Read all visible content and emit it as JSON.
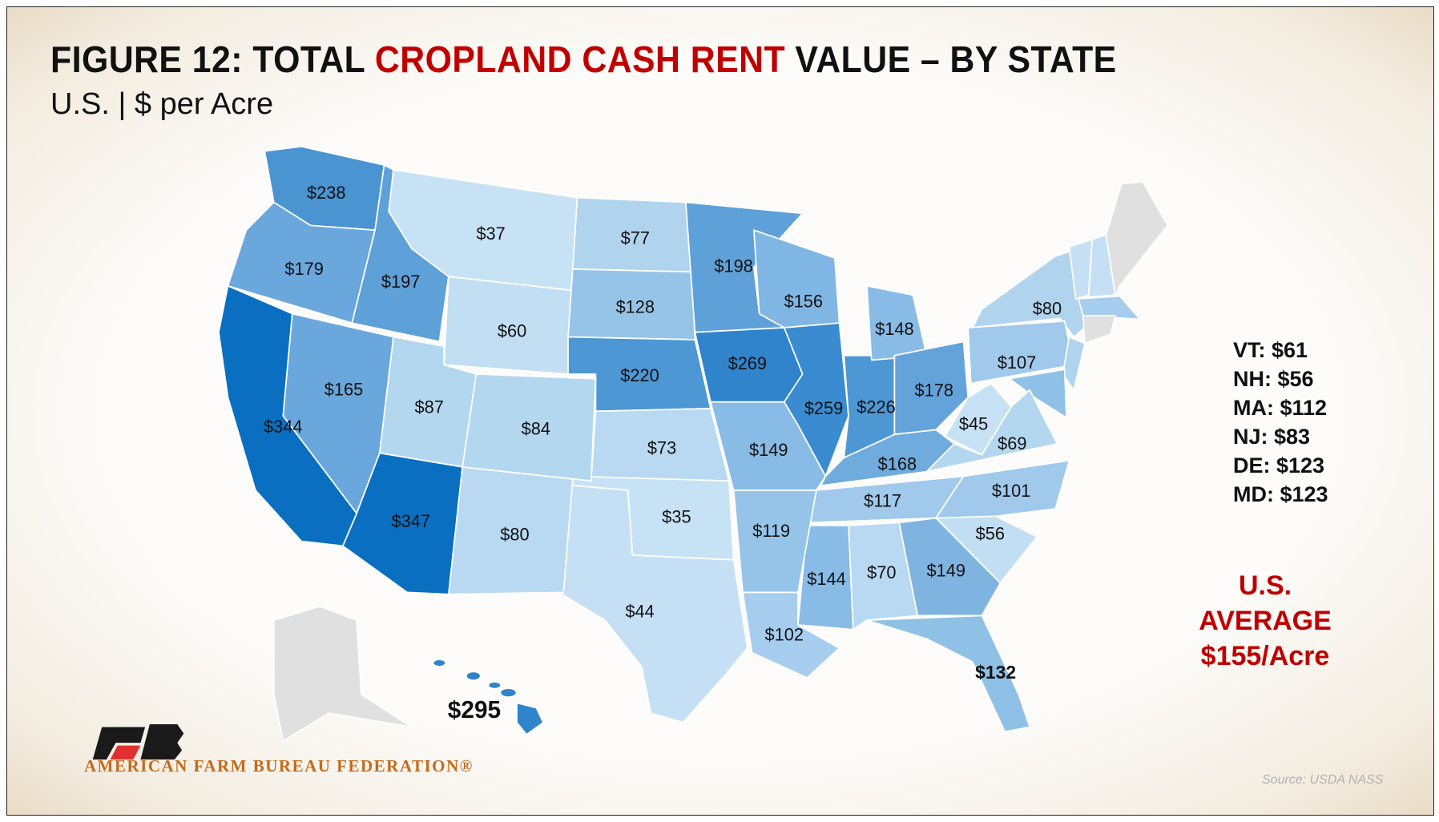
{
  "title": {
    "prefix": "FIGURE 12: TOTAL ",
    "highlight": "CROPLAND CASH RENT",
    "suffix": " VALUE – BY STATE"
  },
  "subtitle": "U.S. | $ per Acre",
  "colors": {
    "title_highlight": "#c00000",
    "no_data": "#e0e0e0",
    "scale_low": "#c8e2f5",
    "scale_high": "#0a6fc0"
  },
  "states": {
    "WA": "$238",
    "OR": "$179",
    "CA": "$344",
    "ID": "$197",
    "NV": "$165",
    "MT": "$37",
    "WY": "$60",
    "UT": "$87",
    "AZ": "$347",
    "CO": "$84",
    "NM": "$80",
    "ND": "$77",
    "SD": "$128",
    "NE": "$220",
    "KS": "$73",
    "OK": "$35",
    "TX": "$44",
    "MN": "$198",
    "IA": "$269",
    "MO": "$149",
    "AR": "$119",
    "LA": "$102",
    "WI": "$156",
    "IL": "$259",
    "MI": "$148",
    "IN": "$226",
    "OH": "$178",
    "KY": "$168",
    "TN": "$117",
    "MS": "$144",
    "AL": "$70",
    "GA": "$149",
    "FL": "$132",
    "SC": "$56",
    "NC": "$101",
    "VA": "$69",
    "WV": "$45",
    "PA": "$107",
    "NY": "$80",
    "HI": "$295"
  },
  "small_states": [
    "VT: $61",
    "NH: $56",
    "MA: $112",
    "NJ: $83",
    "DE: $123",
    "MD: $123"
  ],
  "us_average": {
    "line1": "U.S.",
    "line2": "AVERAGE",
    "line3": "$155/Acre"
  },
  "logo": {
    "text": "AMERICAN FARM BUREAU FEDERATION®"
  },
  "source": "Source: USDA NASS"
}
